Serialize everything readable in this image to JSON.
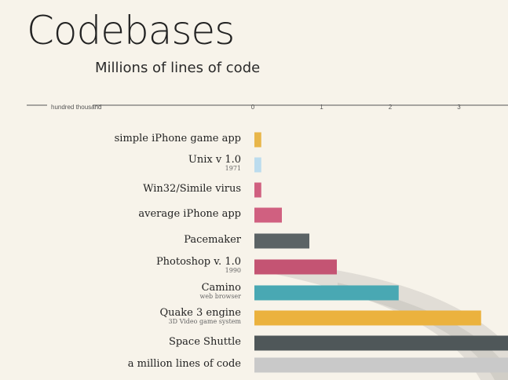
{
  "chart_data": {
    "type": "bar",
    "orientation": "horizontal",
    "title": "Codebases",
    "subtitle": "Millions of lines of code",
    "axis_unit_label": "hundred thousand",
    "ticks": [
      0,
      1,
      2,
      3
    ],
    "xlim": [
      0,
      3.9
    ],
    "grid": false,
    "categories": [
      {
        "label": "simple iPhone game app",
        "sublabel": "",
        "value": 0.1,
        "color": "#e8b64a"
      },
      {
        "label": "Unix v 1.0",
        "sublabel": "1971",
        "value": 0.1,
        "color": "#bcdcee"
      },
      {
        "label": "Win32/Simile virus",
        "sublabel": "",
        "value": 0.1,
        "color": "#d06080"
      },
      {
        "label": "average iPhone app",
        "sublabel": "",
        "value": 0.4,
        "color": "#d06080"
      },
      {
        "label": "Pacemaker",
        "sublabel": "",
        "value": 0.8,
        "color": "#5b6365"
      },
      {
        "label": "Photoshop v. 1.0",
        "sublabel": "1990",
        "value": 1.2,
        "color": "#c45473"
      },
      {
        "label": "Camino",
        "sublabel": "web browser",
        "value": 2.1,
        "color": "#49a8b3"
      },
      {
        "label": "Quake 3 engine",
        "sublabel": "3D Video game system",
        "value": 3.3,
        "color": "#ebb23e"
      },
      {
        "label": "Space Shuttle",
        "sublabel": "",
        "value": 3.9,
        "color": "#4f5759"
      },
      {
        "label": "a million lines of code",
        "sublabel": "",
        "value": 3.9,
        "color": "#c9c9c9"
      }
    ]
  }
}
